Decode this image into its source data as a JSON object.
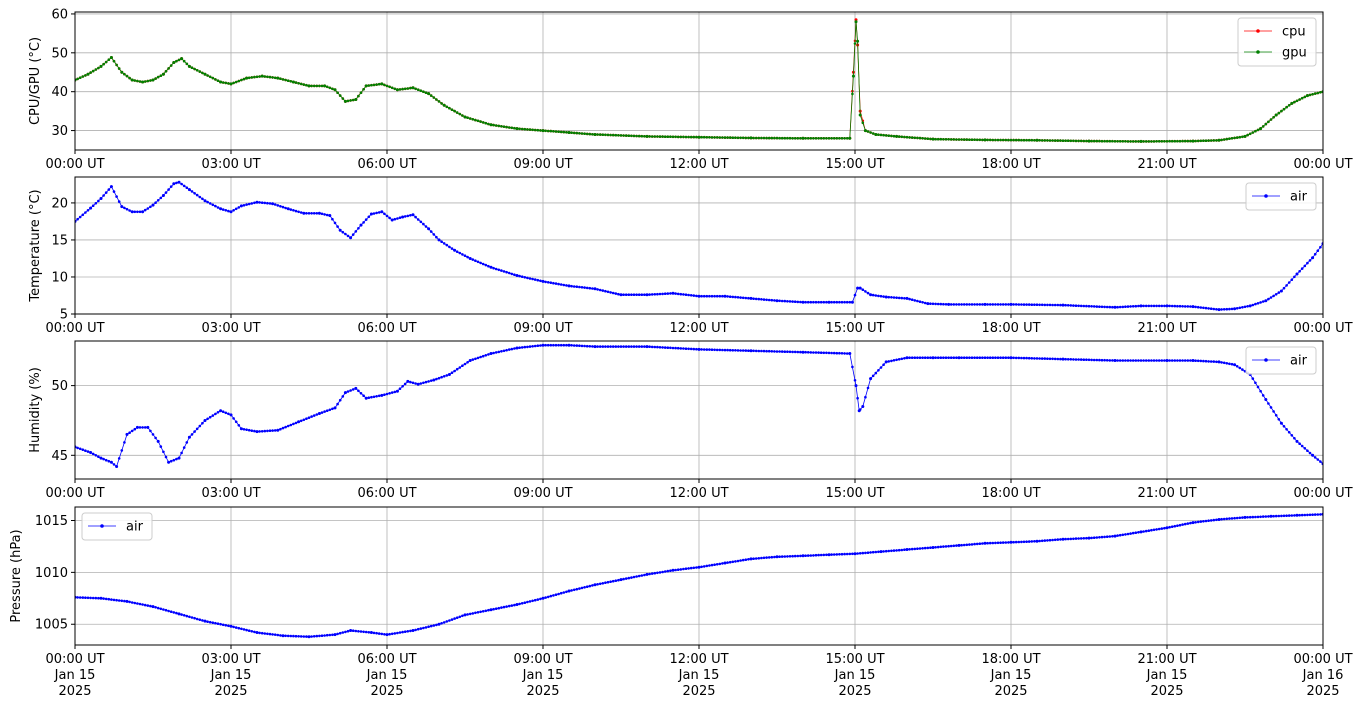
{
  "chart_data": [
    {
      "type": "line",
      "ylabel": "CPU/GPU (°C)",
      "ylim": [
        25,
        60.5
      ],
      "yticks": [
        30,
        40,
        50,
        60
      ],
      "xlim_hours": [
        0,
        24
      ],
      "xticks": [
        "00:00 UT",
        "03:00 UT",
        "06:00 UT",
        "09:00 UT",
        "12:00 UT",
        "15:00 UT",
        "18:00 UT",
        "21:00 UT",
        "00:00 UT"
      ],
      "grid": true,
      "legend_position": "top-right",
      "series": [
        {
          "name": "cpu",
          "color": "#ff0000",
          "x": [
            0,
            0.25,
            0.5,
            0.7,
            0.9,
            1.1,
            1.3,
            1.5,
            1.7,
            1.9,
            2.05,
            2.2,
            2.5,
            2.8,
            3.0,
            3.3,
            3.6,
            3.9,
            4.2,
            4.5,
            4.8,
            5.0,
            5.2,
            5.4,
            5.6,
            5.9,
            6.2,
            6.5,
            6.8,
            7.1,
            7.5,
            8.0,
            8.5,
            9.0,
            9.5,
            10.0,
            11.0,
            12.0,
            13.0,
            14.0,
            14.9,
            14.97,
            15.02,
            15.05,
            15.1,
            15.2,
            15.4,
            15.8,
            16.5,
            17.5,
            18.5,
            19.5,
            20.5,
            21.5,
            22.0,
            22.5,
            22.8,
            23.1,
            23.4,
            23.7,
            24.0
          ],
          "y": [
            43,
            44.5,
            46.5,
            48.8,
            45,
            43,
            42.5,
            43,
            44.5,
            47.5,
            48.5,
            46.5,
            44.5,
            42.5,
            42,
            43.5,
            44,
            43.5,
            42.5,
            41.5,
            41.5,
            40.5,
            37.5,
            38,
            41.5,
            42,
            40.5,
            41,
            39.5,
            36.5,
            33.5,
            31.5,
            30.5,
            30,
            29.5,
            29,
            28.5,
            28.3,
            28.1,
            28,
            28,
            45,
            58.5,
            52,
            35,
            30,
            29,
            28.5,
            27.8,
            27.6,
            27.5,
            27.3,
            27.2,
            27.3,
            27.5,
            28.5,
            30.5,
            34,
            37,
            39,
            40
          ]
        },
        {
          "name": "gpu",
          "color": "#008000",
          "x": [
            0,
            0.25,
            0.5,
            0.7,
            0.9,
            1.1,
            1.3,
            1.5,
            1.7,
            1.9,
            2.05,
            2.2,
            2.5,
            2.8,
            3.0,
            3.3,
            3.6,
            3.9,
            4.2,
            4.5,
            4.8,
            5.0,
            5.2,
            5.4,
            5.6,
            5.9,
            6.2,
            6.5,
            6.8,
            7.1,
            7.5,
            8.0,
            8.5,
            9.0,
            9.5,
            10.0,
            11.0,
            12.0,
            13.0,
            14.0,
            14.9,
            14.97,
            15.02,
            15.05,
            15.1,
            15.2,
            15.4,
            15.8,
            16.5,
            17.5,
            18.5,
            19.5,
            20.5,
            21.5,
            22.0,
            22.5,
            22.8,
            23.1,
            23.4,
            23.7,
            24.0
          ],
          "y": [
            43,
            44.5,
            46.5,
            48.8,
            45,
            43,
            42.5,
            43,
            44.5,
            47.5,
            48.5,
            46.5,
            44.5,
            42.5,
            42,
            43.5,
            44,
            43.5,
            42.5,
            41.5,
            41.5,
            40.5,
            37.5,
            38,
            41.5,
            42,
            40.5,
            41,
            39.5,
            36.5,
            33.5,
            31.5,
            30.5,
            30,
            29.5,
            29,
            28.5,
            28.3,
            28.1,
            28,
            28,
            44,
            58,
            53,
            34,
            30,
            29,
            28.5,
            27.8,
            27.6,
            27.5,
            27.3,
            27.2,
            27.3,
            27.5,
            28.5,
            30.5,
            34,
            37,
            39,
            40
          ]
        }
      ]
    },
    {
      "type": "line",
      "ylabel": "Temperature (°C)",
      "ylim": [
        5,
        23.5
      ],
      "yticks": [
        5,
        10,
        15,
        20
      ],
      "xlim_hours": [
        0,
        24
      ],
      "xticks": [
        "00:00 UT",
        "03:00 UT",
        "06:00 UT",
        "09:00 UT",
        "12:00 UT",
        "15:00 UT",
        "18:00 UT",
        "21:00 UT",
        "00:00 UT"
      ],
      "grid": true,
      "legend_position": "top-right",
      "series": [
        {
          "name": "air",
          "color": "#0000ff",
          "x": [
            0,
            0.3,
            0.5,
            0.7,
            0.9,
            1.1,
            1.3,
            1.5,
            1.7,
            1.9,
            2.0,
            2.2,
            2.5,
            2.8,
            3.0,
            3.2,
            3.5,
            3.8,
            4.1,
            4.4,
            4.7,
            4.9,
            5.1,
            5.3,
            5.5,
            5.7,
            5.9,
            6.1,
            6.3,
            6.5,
            6.8,
            7.0,
            7.3,
            7.6,
            8.0,
            8.5,
            9.0,
            9.5,
            10.0,
            10.5,
            11.0,
            11.5,
            12.0,
            12.5,
            13.0,
            13.5,
            14.0,
            14.5,
            14.95,
            15.05,
            15.1,
            15.3,
            15.6,
            16.0,
            16.4,
            16.8,
            17.5,
            18.0,
            19.0,
            20.0,
            20.5,
            21.0,
            21.5,
            22.0,
            22.3,
            22.6,
            22.9,
            23.2,
            23.5,
            23.8,
            24.0
          ],
          "y": [
            17.5,
            19.3,
            20.6,
            22.2,
            19.5,
            18.8,
            18.8,
            19.7,
            21.0,
            22.6,
            22.8,
            21.8,
            20.3,
            19.2,
            18.8,
            19.6,
            20.1,
            19.9,
            19.2,
            18.6,
            18.6,
            18.3,
            16.3,
            15.3,
            17.0,
            18.5,
            18.8,
            17.7,
            18.1,
            18.4,
            16.5,
            15.0,
            13.6,
            12.5,
            11.3,
            10.2,
            9.4,
            8.8,
            8.4,
            7.6,
            7.6,
            7.8,
            7.4,
            7.4,
            7.1,
            6.8,
            6.6,
            6.6,
            6.6,
            8.5,
            8.5,
            7.6,
            7.3,
            7.1,
            6.4,
            6.3,
            6.3,
            6.3,
            6.2,
            5.9,
            6.1,
            6.1,
            6.0,
            5.6,
            5.7,
            6.1,
            6.8,
            8.1,
            10.4,
            12.6,
            14.5
          ]
        }
      ]
    },
    {
      "type": "line",
      "ylabel": "Humidity (%)",
      "ylim": [
        43.3,
        53.2
      ],
      "yticks": [
        45,
        50
      ],
      "xlim_hours": [
        0,
        24
      ],
      "xticks": [
        "00:00 UT",
        "03:00 UT",
        "06:00 UT",
        "09:00 UT",
        "12:00 UT",
        "15:00 UT",
        "18:00 UT",
        "21:00 UT",
        "00:00 UT"
      ],
      "grid": true,
      "legend_position": "top-right",
      "series": [
        {
          "name": "air",
          "color": "#0000ff",
          "x": [
            0,
            0.3,
            0.5,
            0.7,
            0.8,
            1.0,
            1.2,
            1.4,
            1.6,
            1.8,
            2.0,
            2.2,
            2.5,
            2.8,
            3.0,
            3.2,
            3.5,
            3.9,
            4.3,
            4.7,
            5.0,
            5.2,
            5.4,
            5.6,
            5.9,
            6.2,
            6.4,
            6.6,
            6.9,
            7.2,
            7.6,
            8.0,
            8.5,
            9.0,
            9.5,
            10.0,
            11.0,
            12.0,
            13.0,
            14.0,
            14.9,
            15.02,
            15.08,
            15.15,
            15.3,
            15.6,
            16.0,
            16.5,
            17.0,
            18.0,
            19.0,
            20.0,
            21.0,
            21.5,
            22.0,
            22.3,
            22.6,
            22.9,
            23.2,
            23.5,
            23.8,
            24.0
          ],
          "y": [
            45.6,
            45.2,
            44.8,
            44.5,
            44.2,
            46.5,
            47.0,
            47.0,
            46.0,
            44.5,
            44.8,
            46.3,
            47.5,
            48.2,
            47.9,
            46.9,
            46.7,
            46.8,
            47.4,
            48.0,
            48.4,
            49.5,
            49.8,
            49.1,
            49.3,
            49.6,
            50.3,
            50.1,
            50.4,
            50.8,
            51.8,
            52.3,
            52.7,
            52.9,
            52.9,
            52.8,
            52.8,
            52.6,
            52.5,
            52.4,
            52.3,
            50.0,
            48.2,
            48.5,
            50.5,
            51.7,
            52.0,
            52.0,
            52.0,
            52.0,
            51.9,
            51.8,
            51.8,
            51.8,
            51.7,
            51.5,
            50.8,
            49.0,
            47.3,
            46.0,
            45.0,
            44.4
          ]
        }
      ]
    },
    {
      "type": "line",
      "ylabel": "Pressure (hPa)",
      "ylim": [
        1003,
        1016.3
      ],
      "yticks": [
        1005,
        1010,
        1015
      ],
      "xlim_hours": [
        0,
        24
      ],
      "xticks": [
        "00:00 UT",
        "03:00 UT",
        "06:00 UT",
        "09:00 UT",
        "12:00 UT",
        "15:00 UT",
        "18:00 UT",
        "21:00 UT",
        "00:00 UT"
      ],
      "xticks_line2": [
        "Jan 15",
        "Jan 15",
        "Jan 15",
        "Jan 15",
        "Jan 15",
        "Jan 15",
        "Jan 15",
        "Jan 15",
        "Jan 16"
      ],
      "xticks_line3": [
        "2025",
        "2025",
        "2025",
        "2025",
        "2025",
        "2025",
        "2025",
        "2025",
        "2025"
      ],
      "grid": true,
      "legend_position": "top-left",
      "series": [
        {
          "name": "air",
          "color": "#0000ff",
          "x": [
            0,
            0.5,
            1.0,
            1.5,
            2.0,
            2.5,
            3.0,
            3.5,
            4.0,
            4.5,
            5.0,
            5.3,
            5.7,
            6.0,
            6.5,
            7.0,
            7.5,
            8.0,
            8.5,
            9.0,
            9.5,
            10.0,
            10.5,
            11.0,
            11.5,
            12.0,
            12.5,
            13.0,
            13.5,
            14.0,
            14.5,
            15.0,
            15.5,
            16.0,
            16.5,
            17.0,
            17.5,
            18.0,
            18.5,
            19.0,
            19.5,
            20.0,
            20.5,
            21.0,
            21.5,
            22.0,
            22.5,
            23.0,
            23.5,
            24.0
          ],
          "y": [
            1007.6,
            1007.5,
            1007.2,
            1006.7,
            1006.0,
            1005.3,
            1004.8,
            1004.2,
            1003.9,
            1003.8,
            1004.0,
            1004.4,
            1004.2,
            1004.0,
            1004.4,
            1005.0,
            1005.9,
            1006.4,
            1006.9,
            1007.5,
            1008.2,
            1008.8,
            1009.3,
            1009.8,
            1010.2,
            1010.5,
            1010.9,
            1011.3,
            1011.5,
            1011.6,
            1011.7,
            1011.8,
            1012.0,
            1012.2,
            1012.4,
            1012.6,
            1012.8,
            1012.9,
            1013.0,
            1013.2,
            1013.3,
            1013.5,
            1013.9,
            1014.3,
            1014.8,
            1015.1,
            1015.3,
            1015.4,
            1015.5,
            1015.6
          ]
        }
      ]
    }
  ]
}
